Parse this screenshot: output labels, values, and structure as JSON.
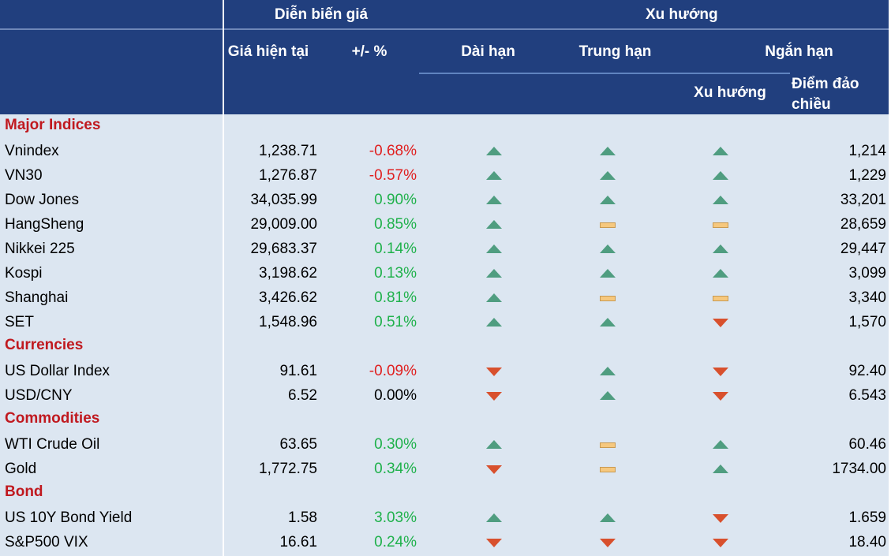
{
  "header": {
    "group_price": "Diễn biến giá",
    "group_trend": "Xu hướng",
    "price": "Giá hiện tại",
    "change": "+/- %",
    "long": "Dài hạn",
    "mid": "Trung hạn",
    "short": "Ngắn hạn",
    "short_trend": "Xu hướng",
    "short_reversal": "Điểm đảo chiều"
  },
  "sections": [
    {
      "title": "Major Indices",
      "rows": [
        {
          "name": "Vnindex",
          "price": "1,238.71",
          "change": "-0.68%",
          "long": "up",
          "mid": "up",
          "short": "up",
          "reversal": "1,214"
        },
        {
          "name": "VN30",
          "price": "1,276.87",
          "change": "-0.57%",
          "long": "up",
          "mid": "up",
          "short": "up",
          "reversal": "1,229"
        },
        {
          "name": "Dow Jones",
          "price": "34,035.99",
          "change": "0.90%",
          "long": "up",
          "mid": "up",
          "short": "up",
          "reversal": "33,201"
        },
        {
          "name": "HangSheng",
          "price": "29,009.00",
          "change": "0.85%",
          "long": "up",
          "mid": "flat",
          "short": "flat",
          "reversal": "28,659"
        },
        {
          "name": "Nikkei 225",
          "price": "29,683.37",
          "change": "0.14%",
          "long": "up",
          "mid": "up",
          "short": "up",
          "reversal": "29,447"
        },
        {
          "name": "Kospi",
          "price": "3,198.62",
          "change": "0.13%",
          "long": "up",
          "mid": "up",
          "short": "up",
          "reversal": "3,099"
        },
        {
          "name": "Shanghai",
          "price": "3,426.62",
          "change": "0.81%",
          "long": "up",
          "mid": "flat",
          "short": "flat",
          "reversal": "3,340"
        },
        {
          "name": "SET",
          "price": "1,548.96",
          "change": "0.51%",
          "long": "up",
          "mid": "up",
          "short": "down",
          "reversal": "1,570"
        }
      ]
    },
    {
      "title": "Currencies",
      "rows": [
        {
          "name": "US Dollar Index",
          "price": "91.61",
          "change": "-0.09%",
          "long": "down",
          "mid": "up",
          "short": "down",
          "reversal": "92.40"
        },
        {
          "name": "USD/CNY",
          "price": "6.52",
          "change": "0.00%",
          "long": "down",
          "mid": "up",
          "short": "down",
          "reversal": "6.543"
        }
      ]
    },
    {
      "title": "Commodities",
      "rows": [
        {
          "name": "WTI Crude Oil",
          "price": "63.65",
          "change": "0.30%",
          "long": "up",
          "mid": "flat",
          "short": "up",
          "reversal": "60.46"
        },
        {
          "name": "Gold",
          "price": "1,772.75",
          "change": "0.34%",
          "long": "down",
          "mid": "flat",
          "short": "up",
          "reversal": "1734.00"
        }
      ]
    },
    {
      "title": "Bond",
      "rows": [
        {
          "name": "US 10Y Bond Yield",
          "price": "1.58",
          "change": "3.03%",
          "long": "up",
          "mid": "up",
          "short": "down",
          "reversal": "1.659"
        },
        {
          "name": "S&P500 VIX",
          "price": "16.61",
          "change": "0.24%",
          "long": "down",
          "mid": "down",
          "short": "down",
          "reversal": "18.40"
        }
      ]
    }
  ]
}
